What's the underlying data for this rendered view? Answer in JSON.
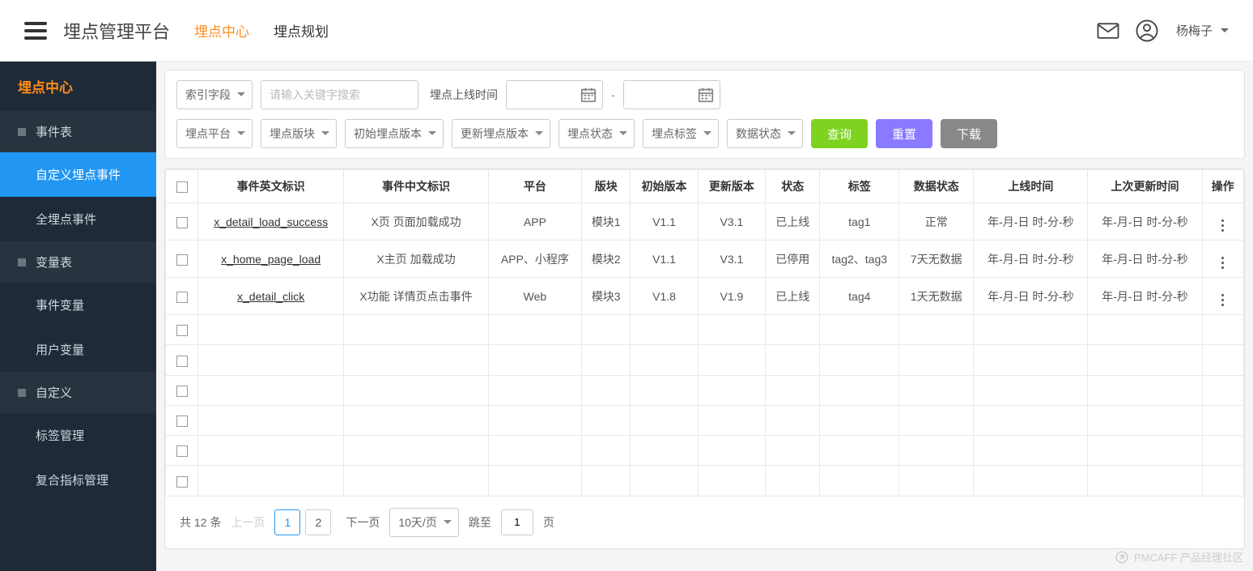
{
  "header": {
    "app_title": "埋点管理平台",
    "nav_active": "埋点中心",
    "nav_inactive": "埋点规划",
    "user_name": "杨梅子"
  },
  "sidebar": {
    "title": "埋点中心",
    "sections": [
      {
        "label": "事件表",
        "items": [
          {
            "label": "自定义埋点事件",
            "active": true
          },
          {
            "label": "全埋点事件",
            "active": false
          }
        ]
      },
      {
        "label": "变量表",
        "items": [
          {
            "label": "事件变量",
            "active": false
          },
          {
            "label": "用户变量",
            "active": false
          }
        ]
      },
      {
        "label": "自定义",
        "items": [
          {
            "label": "标签管理",
            "active": false
          },
          {
            "label": "复合指标管理",
            "active": false
          }
        ]
      }
    ]
  },
  "filters": {
    "index_field": "索引字段",
    "search_placeholder": "请输入关键字搜索",
    "date_label": "埋点上线时间",
    "dash": "-",
    "row2": [
      "埋点平台",
      "埋点版块",
      "初始埋点版本",
      "更新埋点版本",
      "埋点状态",
      "埋点标签",
      "数据状态"
    ],
    "btn_query": "查询",
    "btn_reset": "重置",
    "btn_download": "下载"
  },
  "table": {
    "columns": [
      "事件英文标识",
      "事件中文标识",
      "平台",
      "版块",
      "初始版本",
      "更新版本",
      "状态",
      "标签",
      "数据状态",
      "上线时间",
      "上次更新时间",
      "操作"
    ],
    "rows": [
      [
        "x_detail_load_success",
        "X页 页面加载成功",
        "APP",
        "模块1",
        "V1.1",
        "V3.1",
        "已上线",
        "tag1",
        "正常",
        "年-月-日 时-分-秒",
        "年-月-日 时-分-秒"
      ],
      [
        "x_home_page_load",
        "X主页 加载成功",
        "APP、小程序",
        "模块2",
        "V1.1",
        "V3.1",
        "已停用",
        "tag2、tag3",
        "7天无数据",
        "年-月-日 时-分-秒",
        "年-月-日 时-分-秒"
      ],
      [
        "x_detail_click",
        "X功能 详情页点击事件",
        "Web",
        "模块3",
        "V1.8",
        "V1.9",
        "已上线",
        "tag4",
        "1天无数据",
        "年-月-日 时-分-秒",
        "年-月-日 时-分-秒"
      ]
    ],
    "empty_rows": 6
  },
  "pagination": {
    "total_prefix": "共",
    "total": "12",
    "total_suffix": "条",
    "prev": "上一页",
    "pages": [
      "1",
      "2"
    ],
    "active_page": "1",
    "next": "下一页",
    "page_size": "10天/页",
    "jump_label": "跳至",
    "jump_value": "1",
    "jump_suffix": "页"
  },
  "watermark": "PMCAFF 产品经理社区"
}
